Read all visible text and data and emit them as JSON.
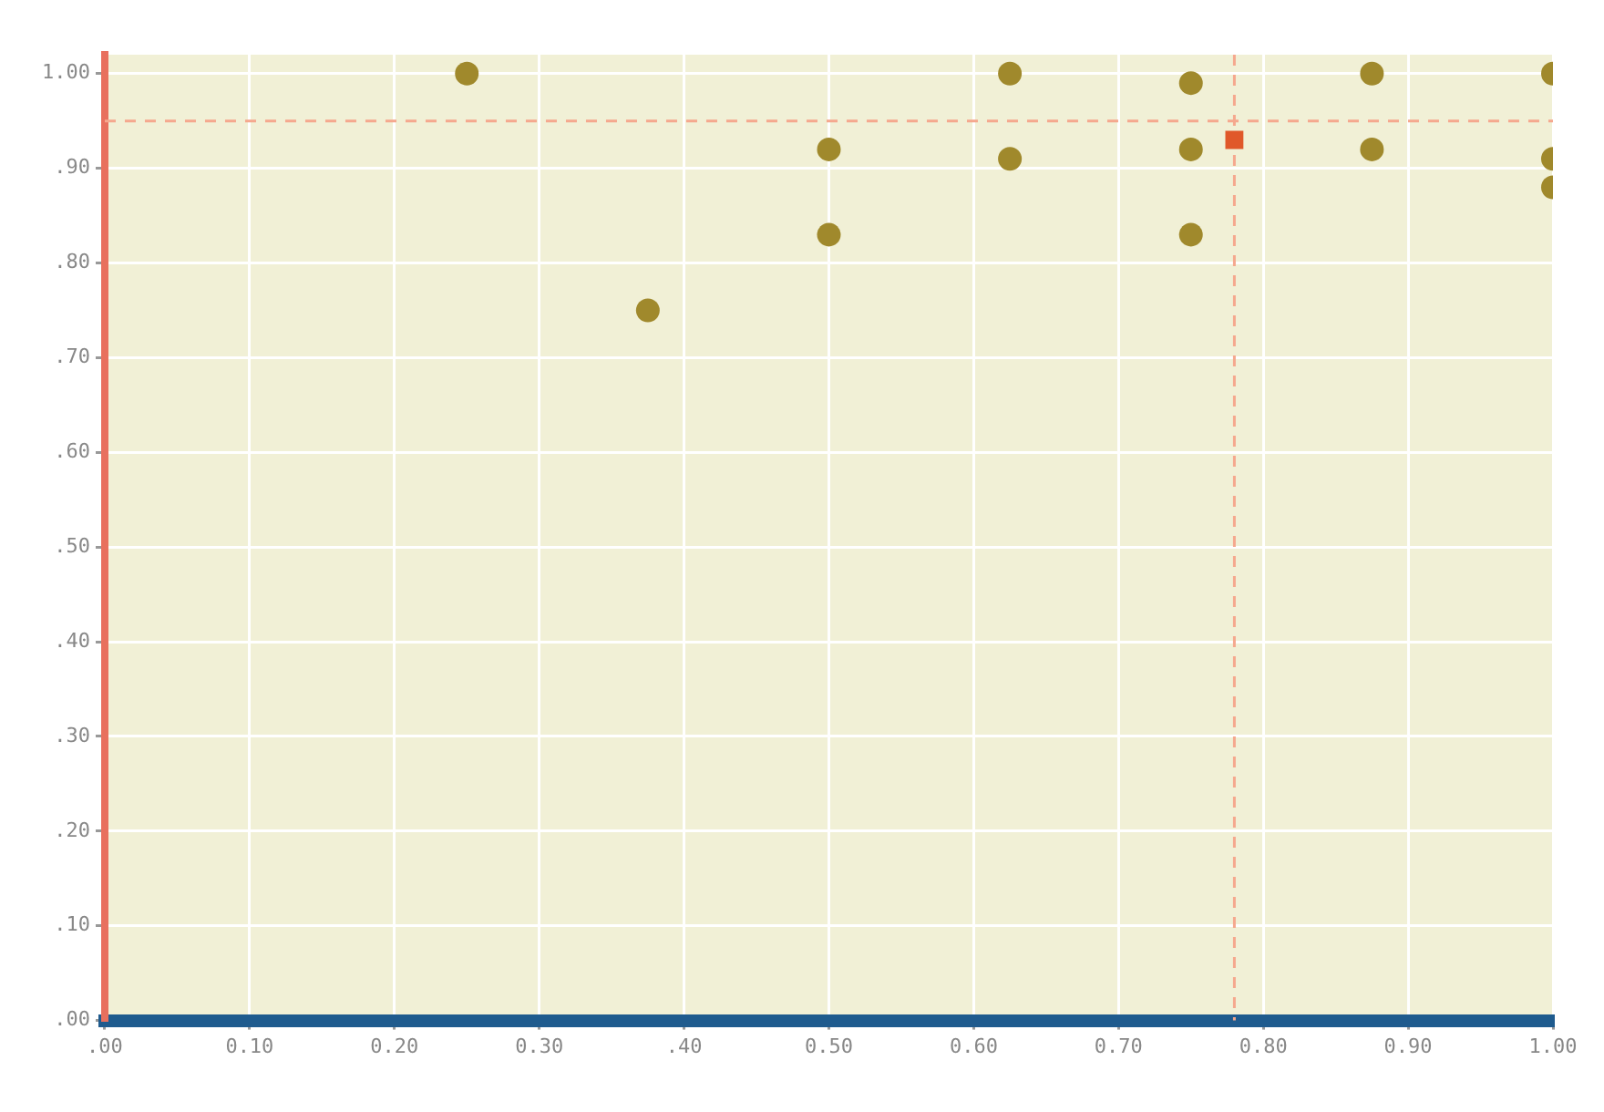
{
  "chart_data": {
    "type": "scatter",
    "xlim": [
      0,
      1
    ],
    "ylim": [
      0,
      1.02
    ],
    "xticks": [
      {
        "value": 0,
        "label": ".00"
      },
      "0.10",
      "0.20",
      "0.30",
      {
        "value": 0.4,
        "label": ".40"
      },
      "0.50",
      "0.60",
      "0.70",
      "0.80",
      "0.90",
      "1.00"
    ],
    "yticks": [
      {
        "value": 0,
        "label": ".00"
      },
      {
        "value": 0.1,
        "label": ".10"
      },
      {
        "value": 0.2,
        "label": ".20"
      },
      {
        "value": 0.3,
        "label": ".30"
      },
      {
        "value": 0.4,
        "label": ".40"
      },
      {
        "value": 0.5,
        "label": ".50"
      },
      {
        "value": 0.6,
        "label": ".60"
      },
      {
        "value": 0.7,
        "label": ".70"
      },
      {
        "value": 0.8,
        "label": ".80"
      },
      {
        "value": 0.9,
        "label": ".90"
      },
      {
        "value": 1,
        "label": "1.00"
      }
    ],
    "grid": true,
    "legend": false,
    "marker": "circle",
    "series": [
      {
        "color": "#a0892c",
        "x": [
          0.25,
          0.375,
          0.5,
          0.5,
          0.625,
          0.625,
          0.75,
          0.75,
          0.75,
          0.875,
          0.875,
          1,
          1,
          1
        ],
        "values": [
          1.0,
          0.75,
          0.92,
          0.83,
          1.0,
          0.91,
          0.99,
          0.92,
          0.83,
          1.0,
          0.92,
          1.0,
          0.91,
          0.88
        ]
      },
      {
        "color": "#e0582a",
        "marker": "square",
        "x": [
          0.78
        ],
        "values": [
          0.93
        ]
      }
    ],
    "ref_lines": [
      {
        "axis": "x",
        "value": 0.78,
        "color": "#f5a88e",
        "line_style": "dashed"
      },
      {
        "axis": "y",
        "value": 0.95,
        "color": "#f5a88e",
        "line_style": "dashed"
      }
    ]
  }
}
